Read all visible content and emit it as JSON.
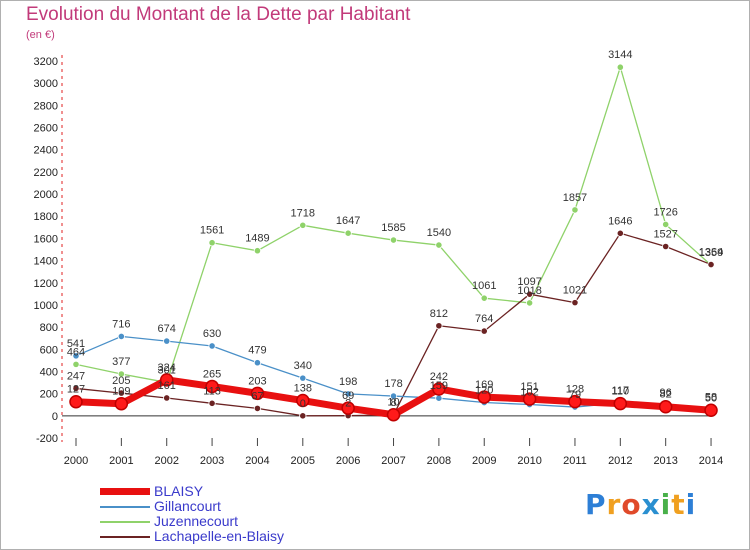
{
  "title": "Evolution du Montant de la Dette par Habitant",
  "subtitle": "(en €)",
  "brand": {
    "letters": [
      "P",
      "r",
      "o",
      "x",
      "i",
      "t",
      "i"
    ],
    "colors": [
      "#2d7fd6",
      "#f0a020",
      "#e04a2a",
      "#2a8fd0",
      "#49b04a",
      "#f0a020",
      "#2d7fd6"
    ]
  },
  "chart_data": {
    "type": "line",
    "x": [
      "2000",
      "2001",
      "2002",
      "2003",
      "2004",
      "2005",
      "2006",
      "2007",
      "2008",
      "2009",
      "2010",
      "2011",
      "2012",
      "2013",
      "2014"
    ],
    "ylim": [
      -200,
      3200
    ],
    "yticks": [
      "-200",
      "0",
      "200",
      "400",
      "600",
      "800",
      "1000",
      "1200",
      "1400",
      "1600",
      "1800",
      "2000",
      "2200",
      "2400",
      "2600",
      "2800",
      "3000",
      "3200"
    ],
    "grid": false,
    "legend_position": "bottom-left",
    "series": [
      {
        "name": "BLAISY",
        "color": "#e81010",
        "width": 7,
        "values": [
          127,
          109,
          324,
          265,
          203,
          138,
          69,
          10,
          242,
          169,
          151,
          128,
          110,
          82,
          50
        ],
        "labels": [
          "127",
          "109",
          "324",
          "265",
          "203",
          "138",
          "69",
          "10",
          "242",
          "169",
          "151",
          "128",
          "110",
          "82",
          "50"
        ]
      },
      {
        "name": "Gillancourt",
        "color": "#4a90c8",
        "width": 1.3,
        "values": [
          541,
          716,
          674,
          630,
          479,
          340,
          198,
          178,
          159,
          120,
          102,
          79,
          117,
          96,
          58
        ],
        "labels": [
          "541",
          "716",
          "674",
          "630",
          "479",
          "340",
          "198",
          "178",
          "159",
          "120",
          "102",
          "79",
          "117",
          "96",
          "58"
        ]
      },
      {
        "name": "Juzennecourt",
        "color": "#8fd26a",
        "width": 1.3,
        "values": [
          464,
          377,
          301,
          1561,
          1489,
          1718,
          1647,
          1585,
          1540,
          1061,
          1018,
          1857,
          3144,
          1726,
          1359
        ],
        "labels": [
          "464",
          "377",
          "301",
          "1561",
          "1489",
          "1718",
          "1647",
          "1585",
          "1540",
          "1061",
          "1018",
          "1857",
          "3144",
          "1726",
          "1359"
        ]
      },
      {
        "name": "Lachapelle-en-Blaisy",
        "color": "#6b2323",
        "width": 1.3,
        "values": [
          247,
          205,
          161,
          113,
          67,
          0,
          2,
          8,
          812,
          764,
          1097,
          1021,
          1646,
          1527,
          1364
        ],
        "labels": [
          "247",
          "205",
          "161",
          "113",
          "67",
          "0",
          "2",
          "8",
          "812",
          "764",
          "1097",
          "1021",
          "1646",
          "1527",
          "1364"
        ]
      }
    ]
  }
}
